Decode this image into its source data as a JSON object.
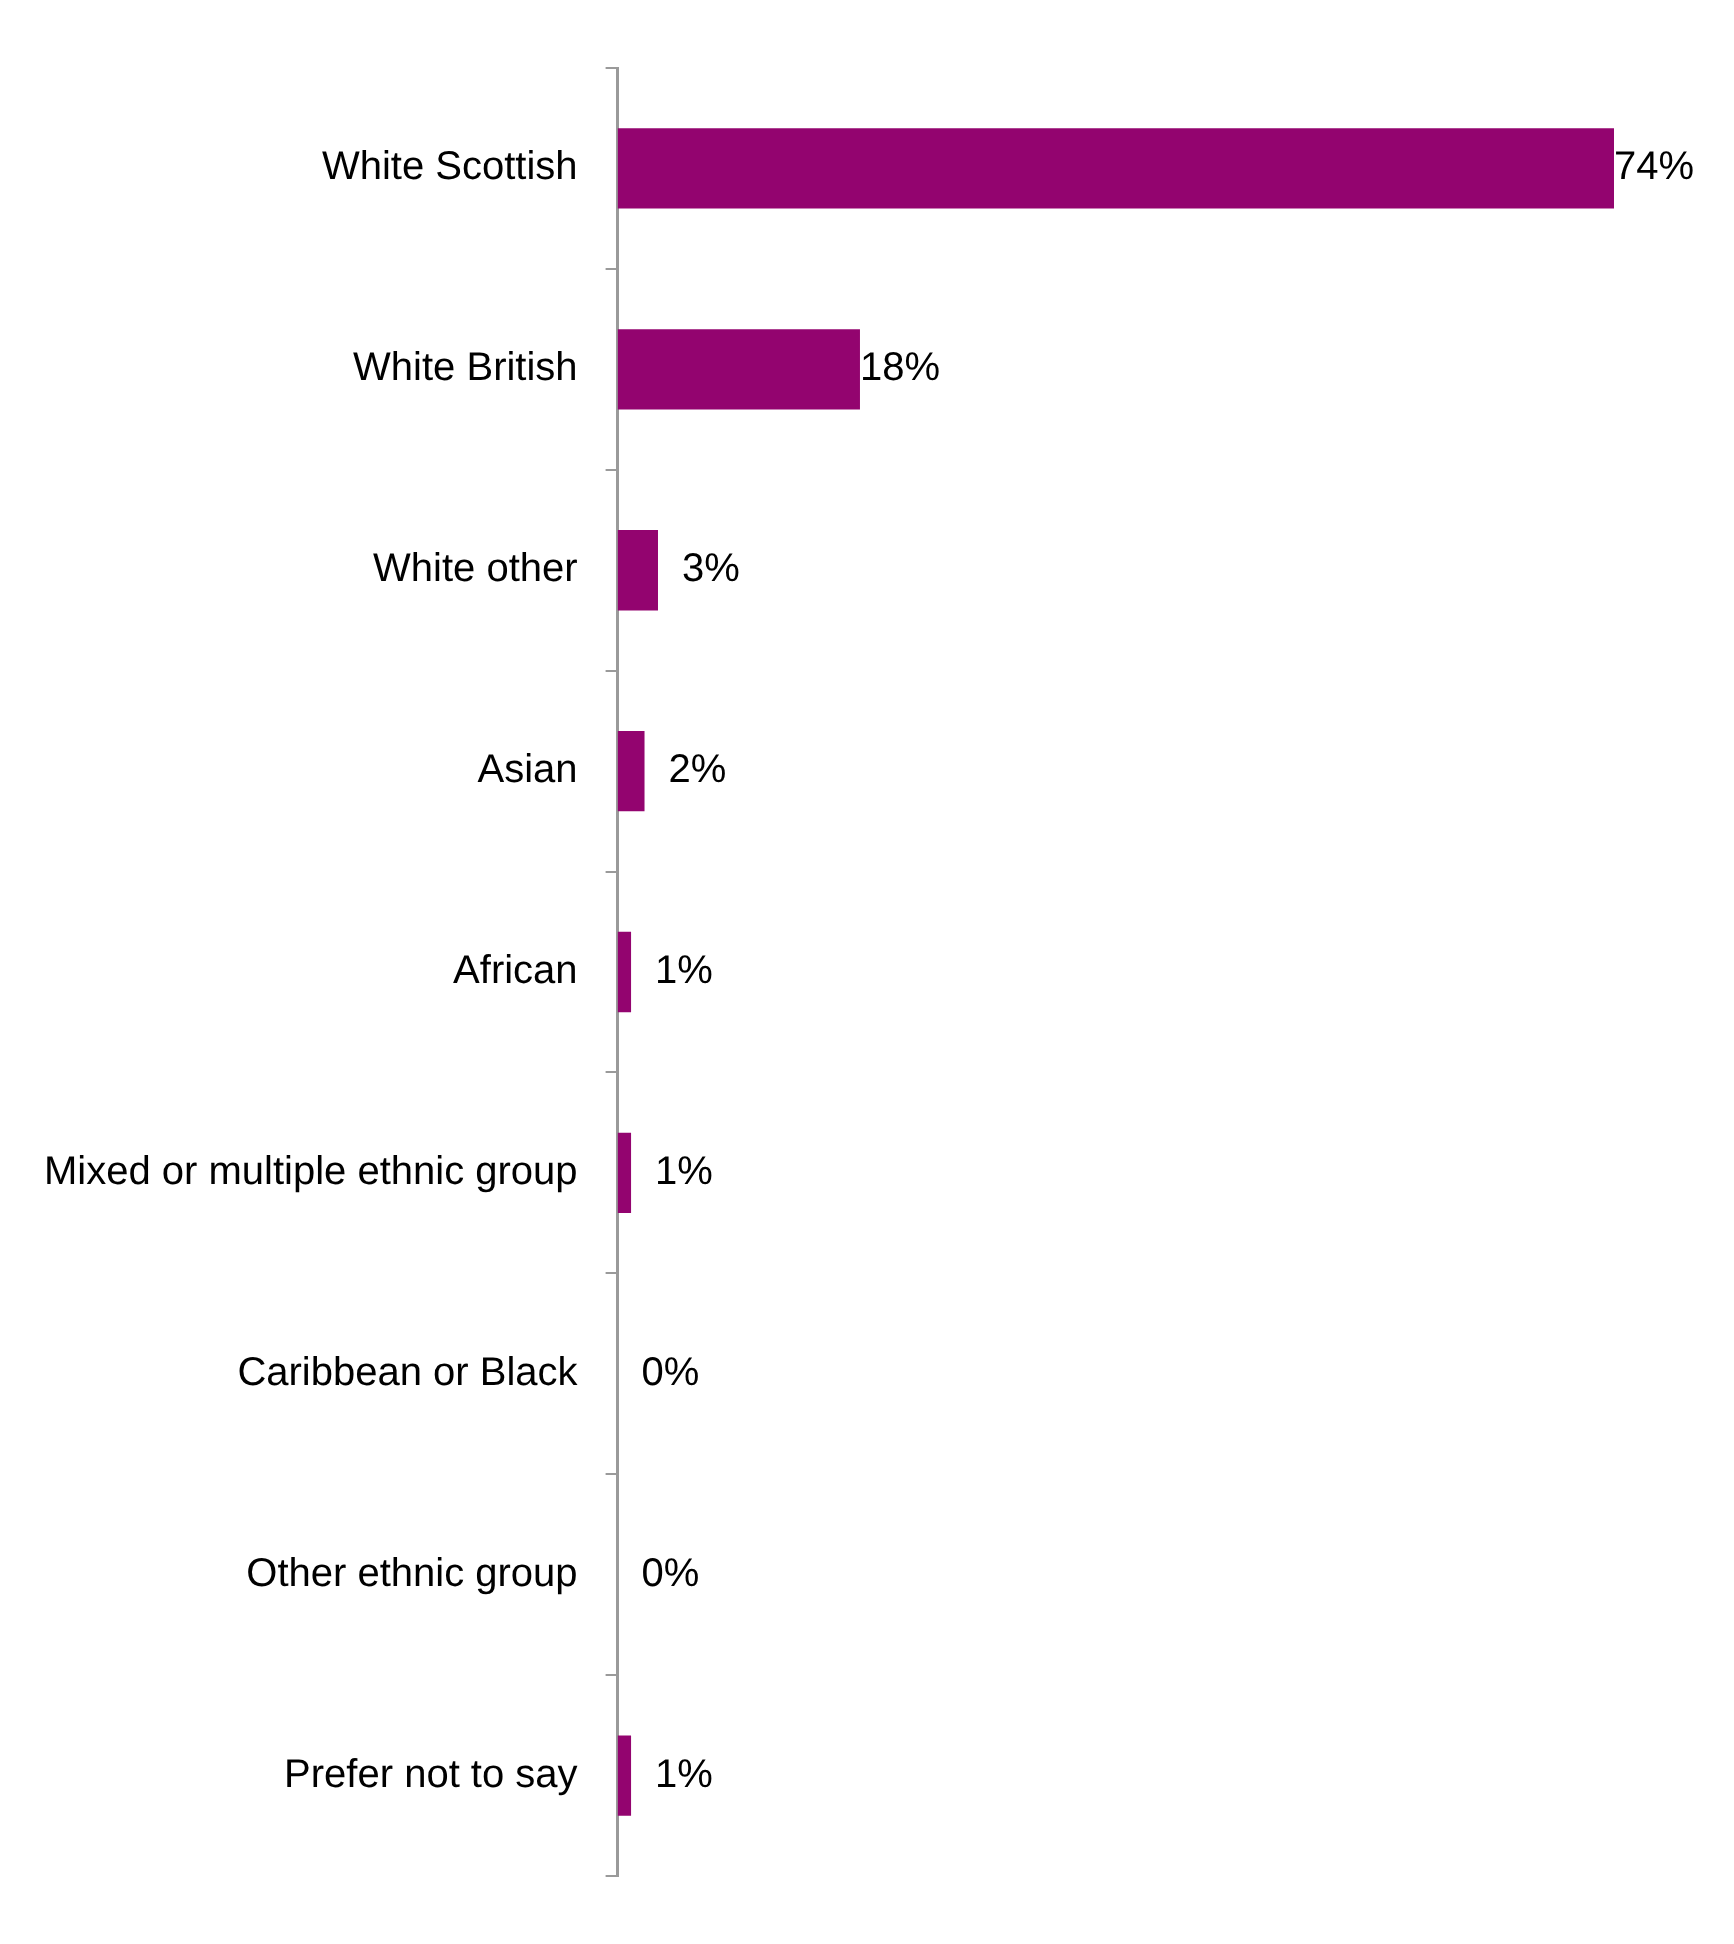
{
  "chart_data": {
    "type": "bar",
    "orientation": "horizontal",
    "categories": [
      "White Scottish",
      "White British",
      "White other",
      "Asian",
      "African",
      "Mixed or multiple ethnic group",
      "Caribbean or Black",
      "Other ethnic group",
      "Prefer not to say"
    ],
    "values": [
      74,
      18,
      3,
      2,
      1,
      1,
      0,
      0,
      1
    ],
    "value_labels": [
      "74%",
      "18%",
      "3%",
      "2%",
      "1%",
      "1%",
      "0%",
      "0%",
      "1%"
    ],
    "color": "#93046f",
    "grid": false,
    "legend": false
  }
}
